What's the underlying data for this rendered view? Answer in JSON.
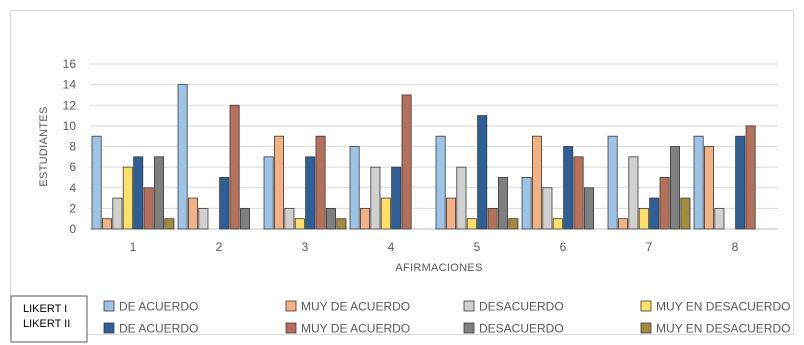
{
  "chart_data": {
    "type": "bar",
    "categories": [
      "1",
      "2",
      "3",
      "4",
      "5",
      "6",
      "7",
      "8"
    ],
    "xlabel": "AFIRMACIONES",
    "ylabel": "ESTUDIANTES",
    "ylim": [
      0,
      16
    ],
    "yticks": [
      0,
      2,
      4,
      6,
      8,
      10,
      12,
      14,
      16
    ],
    "grid": true,
    "legend_groups": [
      "LIKERT I",
      "LIKERT II"
    ],
    "series": [
      {
        "name": "DE ACUERDO",
        "group": "LIKERT I",
        "color": "#9dc3e6",
        "values": [
          9,
          14,
          7,
          8,
          9,
          5,
          9,
          9
        ]
      },
      {
        "name": "MUY DE ACUERDO",
        "group": "LIKERT I",
        "color": "#f4b183",
        "values": [
          1,
          3,
          9,
          2,
          3,
          9,
          1,
          8
        ]
      },
      {
        "name": "DESACUERDO",
        "group": "LIKERT I",
        "color": "#d0d0d0",
        "values": [
          3,
          2,
          2,
          6,
          6,
          4,
          7,
          2
        ]
      },
      {
        "name": "MUY EN DESACUERDO",
        "group": "LIKERT I",
        "color": "#ffe066",
        "values": [
          6,
          0,
          1,
          3,
          1,
          1,
          2,
          0
        ]
      },
      {
        "name": "DE ACUERDO",
        "group": "LIKERT II",
        "color": "#2e5f96",
        "values": [
          7,
          5,
          7,
          6,
          11,
          8,
          3,
          9
        ]
      },
      {
        "name": "MUY DE ACUERDO",
        "group": "LIKERT II",
        "color": "#b5705a",
        "values": [
          4,
          12,
          9,
          13,
          2,
          7,
          5,
          10
        ]
      },
      {
        "name": "DESACUERDO",
        "group": "LIKERT II",
        "color": "#7f7f7f",
        "values": [
          7,
          2,
          2,
          0,
          5,
          4,
          8,
          0
        ]
      },
      {
        "name": "MUY EN DESACUERDO",
        "group": "LIKERT II",
        "color": "#a38a3c",
        "values": [
          1,
          0,
          1,
          0,
          1,
          0,
          3,
          0
        ]
      }
    ]
  }
}
